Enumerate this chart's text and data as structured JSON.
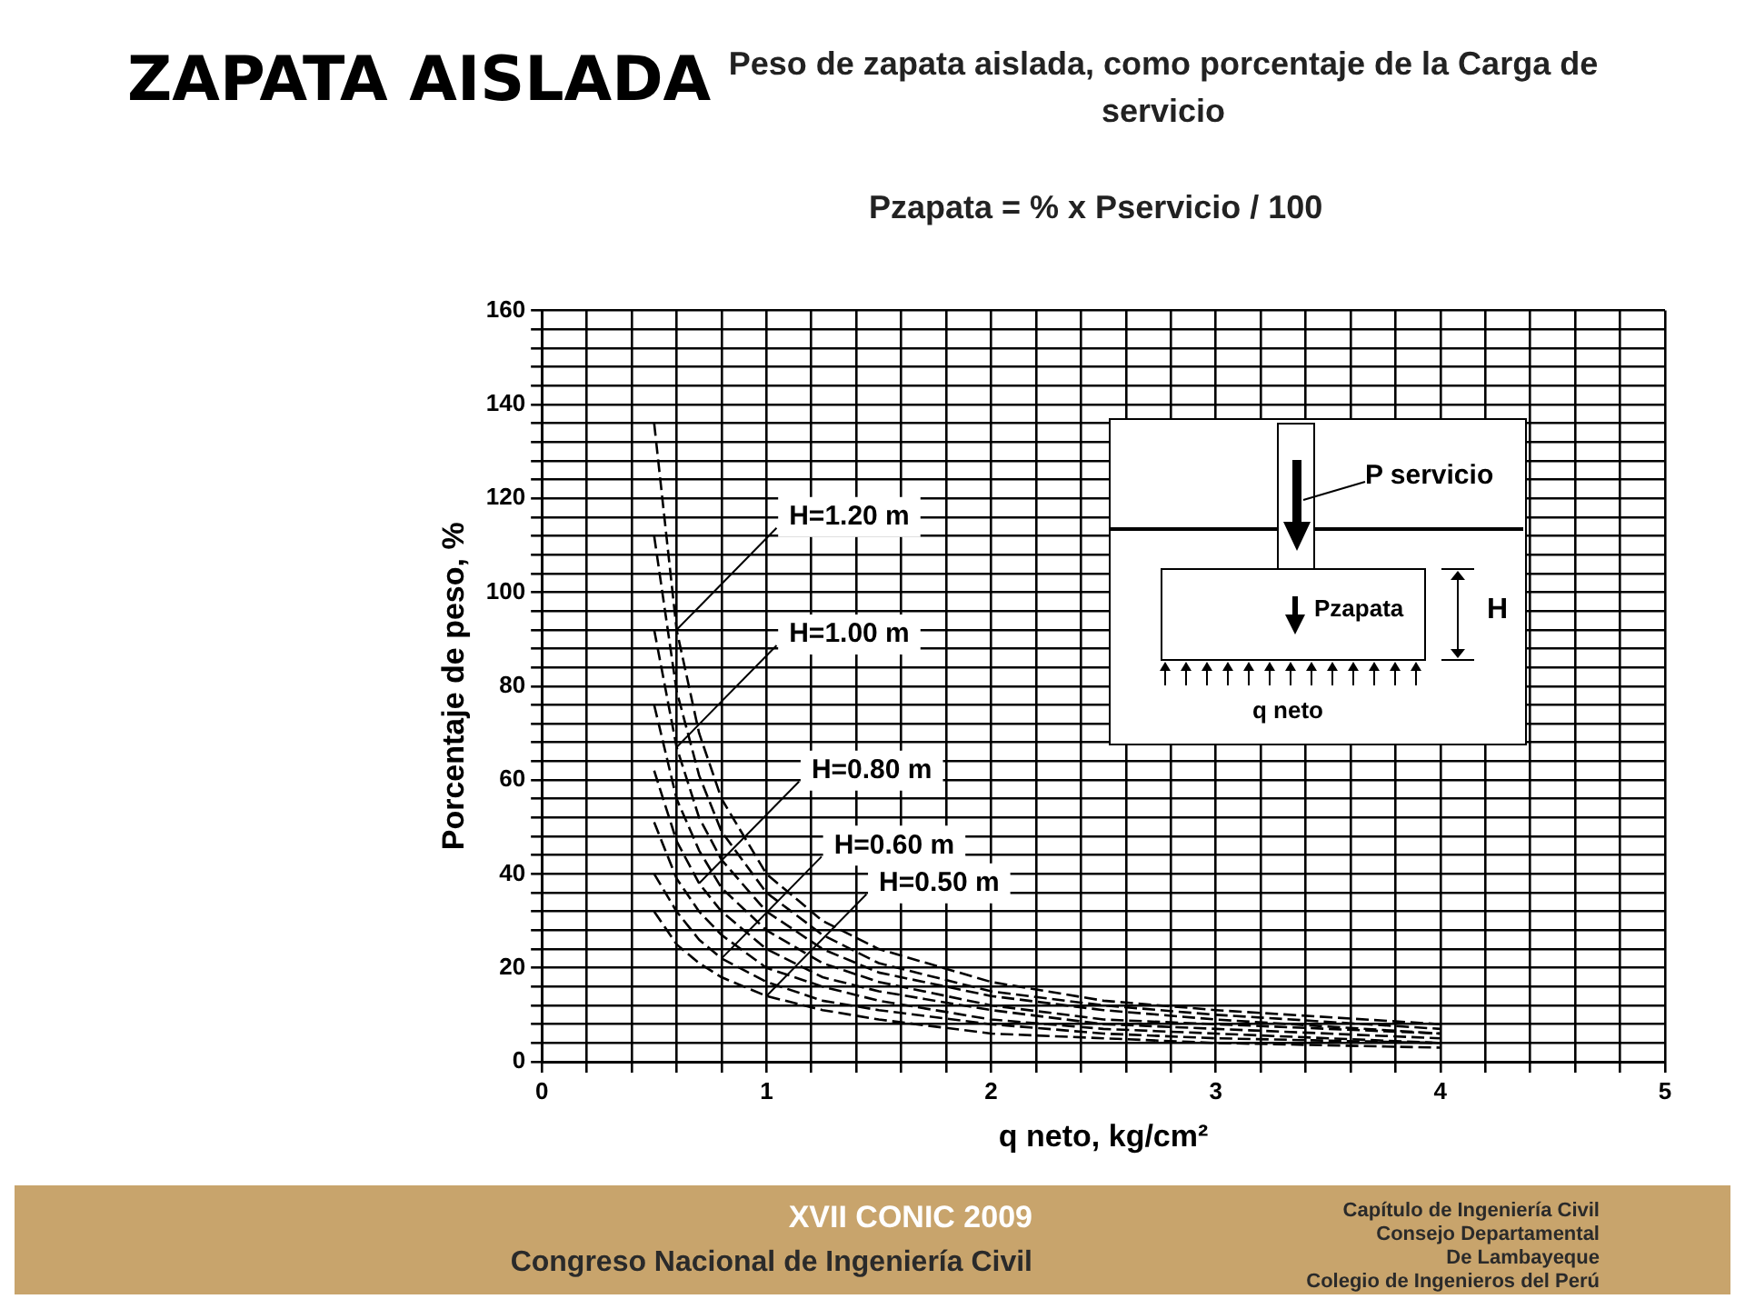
{
  "chart_data": {
    "type": "line",
    "title": "ZAPATA AISLADA",
    "subtitle": "Peso de zapata aislada, como porcentaje de la Carga de servicio",
    "xlabel": "q neto, kg/cm²",
    "ylabel": "Porcentaje de peso, %",
    "x": [
      0.5,
      0.6,
      0.7,
      0.8,
      1,
      1.25,
      1.5,
      2,
      2.5,
      3,
      4
    ],
    "series": [
      {
        "color": "#000000",
        "values": [
          32,
          25,
          21,
          18,
          14,
          11,
          9,
          6,
          5,
          4,
          3
        ]
      },
      {
        "color": "#000000",
        "values": [
          40,
          32,
          26,
          22,
          17,
          13,
          11,
          8,
          6,
          5,
          4
        ]
      },
      {
        "color": "#000000",
        "values": [
          51,
          39,
          32,
          27,
          20,
          16,
          13,
          9,
          7,
          6,
          4
        ]
      },
      {
        "color": "#000000",
        "values": [
          62,
          47,
          38,
          32,
          24,
          18,
          15,
          11,
          8,
          7,
          5
        ]
      },
      {
        "color": "#000000",
        "values": [
          76,
          56,
          45,
          37,
          28,
          21,
          17,
          12,
          9,
          8,
          6
        ]
      },
      {
        "color": "#000000",
        "values": [
          92,
          67,
          52,
          43,
          32,
          24,
          19,
          14,
          11,
          9,
          6
        ]
      },
      {
        "color": "#000000",
        "values": [
          112,
          79,
          61,
          49,
          36,
          27,
          21,
          15,
          12,
          10,
          7
        ]
      },
      {
        "color": "#000000",
        "values": [
          136,
          92,
          70,
          56,
          40,
          30,
          24,
          17,
          13,
          11,
          8
        ]
      }
    ],
    "line_style": "dashed",
    "marker": "none",
    "grid": true,
    "legend": false,
    "xlim": [
      0,
      5
    ],
    "ylim": [
      0,
      160
    ],
    "xticks": [
      0,
      {
        "value": 0.2,
        "label": null
      },
      {
        "value": 0.4,
        "label": null
      },
      {
        "value": 0.6,
        "label": null
      },
      {
        "value": 0.8,
        "label": null
      },
      1,
      {
        "value": 1.2,
        "label": null
      },
      {
        "value": 1.4,
        "label": null
      },
      {
        "value": 1.6,
        "label": null
      },
      {
        "value": 1.8,
        "label": null
      },
      2,
      {
        "value": 2.2,
        "label": null
      },
      {
        "value": 2.4,
        "label": null
      },
      {
        "value": 2.6,
        "label": null
      },
      {
        "value": 2.8,
        "label": null
      },
      3,
      {
        "value": 3.2,
        "label": null
      },
      {
        "value": 3.4,
        "label": null
      },
      {
        "value": 3.6,
        "label": null
      },
      {
        "value": 3.8,
        "label": null
      },
      4,
      {
        "value": 4.2,
        "label": null
      },
      {
        "value": 4.4,
        "label": null
      },
      {
        "value": 4.6,
        "label": null
      },
      {
        "value": 4.8,
        "label": null
      },
      5
    ],
    "yticks": [
      0,
      {
        "value": 4,
        "label": null
      },
      {
        "value": 8,
        "label": null
      },
      {
        "value": 12,
        "label": null
      },
      {
        "value": 16,
        "label": null
      },
      20,
      {
        "value": 24,
        "label": null
      },
      {
        "value": 28,
        "label": null
      },
      {
        "value": 32,
        "label": null
      },
      {
        "value": 36,
        "label": null
      },
      40,
      {
        "value": 44,
        "label": null
      },
      {
        "value": 48,
        "label": null
      },
      {
        "value": 52,
        "label": null
      },
      {
        "value": 56,
        "label": null
      },
      60,
      {
        "value": 64,
        "label": null
      },
      {
        "value": 68,
        "label": null
      },
      {
        "value": 72,
        "label": null
      },
      {
        "value": 76,
        "label": null
      },
      80,
      {
        "value": 84,
        "label": null
      },
      {
        "value": 88,
        "label": null
      },
      {
        "value": 92,
        "label": null
      },
      {
        "value": 96,
        "label": null
      },
      100,
      {
        "value": 104,
        "label": null
      },
      {
        "value": 108,
        "label": null
      },
      {
        "value": 112,
        "label": null
      },
      {
        "value": 116,
        "label": null
      },
      120,
      {
        "value": 124,
        "label": null
      },
      {
        "value": 128,
        "label": null
      },
      {
        "value": 132,
        "label": null
      },
      {
        "value": 136,
        "label": null
      },
      140,
      {
        "value": 144,
        "label": null
      },
      {
        "value": 148,
        "label": null
      },
      {
        "value": 152,
        "label": null
      },
      {
        "value": 156,
        "label": null
      },
      160
    ],
    "annotations": [
      "Pzapata = % x Pservicio / 100",
      "P servicio",
      "Pzapata",
      "H",
      "q neto",
      "XVII CONIC 2009",
      "Congreso Nacional de Ingeniería Civil",
      "Capítulo de Ingeniería Civil",
      "Consejo Departamental",
      "De Lambayeque",
      "Colegio de Ingenieros del Perú",
      {
        "text": "H=1.20 m",
        "x": 0.6,
        "y": 92
      },
      {
        "text": "H=1.00 m",
        "x": 0.6,
        "y": 67
      },
      {
        "text": "H=0.80 m",
        "x": 0.7,
        "y": 38
      },
      {
        "text": "H=0.60 m",
        "x": 0.8,
        "y": 22
      },
      {
        "text": "H=0.50 m",
        "x": 1,
        "y": 14
      }
    ]
  }
}
